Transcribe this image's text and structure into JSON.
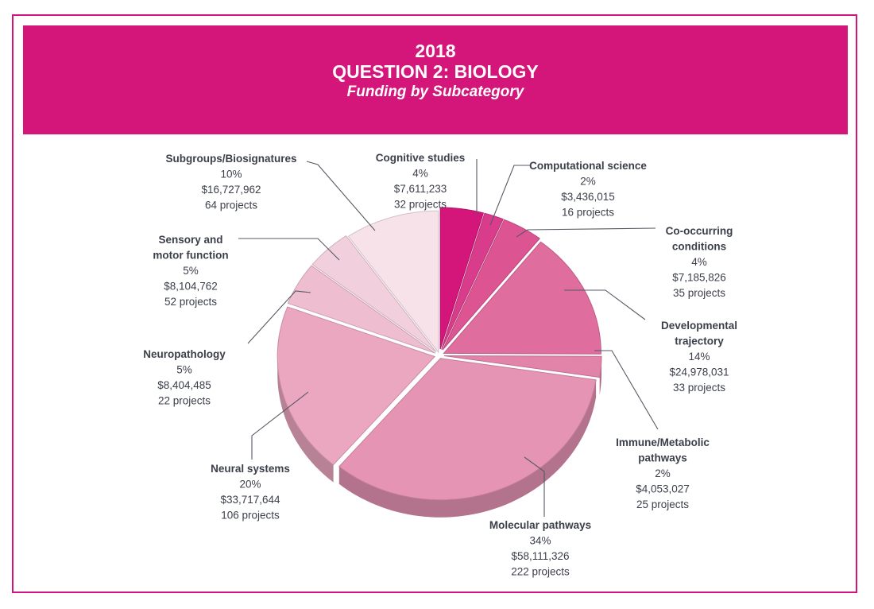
{
  "header": {
    "year": "2018",
    "title": "QUESTION 2: BIOLOGY",
    "subtitle": "Funding by Subcategory"
  },
  "colors": {
    "brand": "#d4157a",
    "frame": "#d4147a",
    "label_text": "#3b3f4a",
    "leader_line": "#555a63"
  },
  "chart_data": {
    "type": "pie",
    "title": "2018 QUESTION 2: BIOLOGY — Funding by Subcategory",
    "style": "3d-exploded",
    "start_angle_deg": 0,
    "direction": "clockwise",
    "slices": [
      {
        "name": "Cognitive studies",
        "name_lines": [
          "Cognitive studies"
        ],
        "percent": 4,
        "amount": 7611233,
        "amount_label": "$7,611,233",
        "projects": 32,
        "projects_label": "32 projects",
        "color": "#d4157a"
      },
      {
        "name": "Computational science",
        "name_lines": [
          "Computational science"
        ],
        "percent": 2,
        "amount": 3436015,
        "amount_label": "$3,436,015",
        "projects": 16,
        "projects_label": "16 projects",
        "color": "#d83c8b"
      },
      {
        "name": "Co-occurring conditions",
        "name_lines": [
          "Co-occurring",
          "conditions"
        ],
        "percent": 4,
        "amount": 7185826,
        "amount_label": "$7,185,826",
        "projects": 35,
        "projects_label": "35 projects",
        "color": "#dc5592"
      },
      {
        "name": "Developmental trajectory",
        "name_lines": [
          "Developmental",
          "trajectory"
        ],
        "percent": 14,
        "amount": 24978031,
        "amount_label": "$24,978,031",
        "projects": 33,
        "projects_label": "33 projects",
        "color": "#df6d9d"
      },
      {
        "name": "Immune/Metabolic pathways",
        "name_lines": [
          "Immune/Metabolic",
          "pathways"
        ],
        "percent": 2,
        "amount": 4053027,
        "amount_label": "$4,053,027",
        "projects": 25,
        "projects_label": "25 projects",
        "color": "#e283aa"
      },
      {
        "name": "Molecular pathways",
        "name_lines": [
          "Molecular pathways"
        ],
        "percent": 34,
        "amount": 58111326,
        "amount_label": "$58,111,326",
        "projects": 222,
        "projects_label": "222 projects",
        "color": "#e594b3"
      },
      {
        "name": "Neural systems",
        "name_lines": [
          "Neural systems"
        ],
        "percent": 20,
        "amount": 33717644,
        "amount_label": "$33,717,644",
        "projects": 106,
        "projects_label": "106 projects",
        "color": "#eba6c0"
      },
      {
        "name": "Neuropathology",
        "name_lines": [
          "Neuropathology"
        ],
        "percent": 5,
        "amount": 8404485,
        "amount_label": "$8,404,485",
        "projects": 22,
        "projects_label": "22 projects",
        "color": "#efbdd0"
      },
      {
        "name": "Sensory and motor function",
        "name_lines": [
          "Sensory and",
          "motor function"
        ],
        "percent": 5,
        "amount": 8104762,
        "amount_label": "$8,104,762",
        "projects": 52,
        "projects_label": "52 projects",
        "color": "#f2cfdc"
      },
      {
        "name": "Subgroups/Biosignatures",
        "name_lines": [
          "Subgroups/Biosignatures"
        ],
        "percent": 10,
        "amount": 16727962,
        "amount_label": "$16,727,962",
        "projects": 64,
        "projects_label": "64 projects",
        "color": "#f7e2ea"
      }
    ]
  }
}
